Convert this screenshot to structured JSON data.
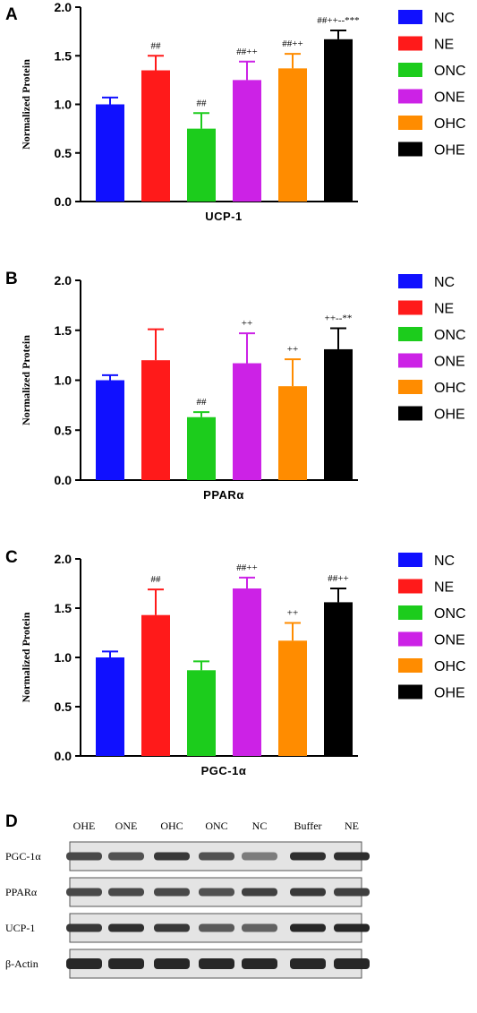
{
  "colors": {
    "NC": "#1010ff",
    "NE": "#ff1a1a",
    "ONC": "#1ccc1c",
    "ONE": "#cc22e6",
    "OHC": "#ff8c00",
    "OHE": "#000000"
  },
  "legend": [
    "NC",
    "NE",
    "ONC",
    "ONE",
    "OHC",
    "OHE"
  ],
  "chart_data": [
    {
      "type": "bar",
      "panel": "A",
      "title": "",
      "xlabel": "UCP-1",
      "ylabel": "Normalized Protein",
      "ylim": [
        0,
        2.0
      ],
      "yticks": [
        "0.0",
        "0.5",
        "1.0",
        "1.5",
        "2.0"
      ],
      "categories": [
        "NC",
        "NE",
        "ONC",
        "ONE",
        "OHC",
        "OHE"
      ],
      "values": [
        1.0,
        1.35,
        0.75,
        1.25,
        1.37,
        1.67
      ],
      "errors": [
        0.07,
        0.15,
        0.16,
        0.19,
        0.15,
        0.09
      ],
      "annotations": [
        "",
        "##",
        "##",
        "##++",
        "##++",
        "##++--***"
      ],
      "legend_position": "right"
    },
    {
      "type": "bar",
      "panel": "B",
      "title": "",
      "xlabel": "PPARα",
      "ylabel": "Normalized Protein",
      "ylim": [
        0,
        2.0
      ],
      "yticks": [
        "0.0",
        "0.5",
        "1.0",
        "1.5",
        "2.0"
      ],
      "categories": [
        "NC",
        "NE",
        "ONC",
        "ONE",
        "OHC",
        "OHE"
      ],
      "values": [
        1.0,
        1.2,
        0.63,
        1.17,
        0.94,
        1.31
      ],
      "errors": [
        0.05,
        0.31,
        0.05,
        0.3,
        0.27,
        0.21
      ],
      "annotations": [
        "",
        "",
        "##",
        "++",
        "++",
        "++--**"
      ],
      "legend_position": "right"
    },
    {
      "type": "bar",
      "panel": "C",
      "title": "",
      "xlabel": "PGC-1α",
      "ylabel": "Normalized Protein",
      "ylim": [
        0,
        2.0
      ],
      "yticks": [
        "0.0",
        "0.5",
        "1.0",
        "1.5",
        "2.0"
      ],
      "categories": [
        "NC",
        "NE",
        "ONC",
        "ONE",
        "OHC",
        "OHE"
      ],
      "values": [
        1.0,
        1.43,
        0.87,
        1.7,
        1.17,
        1.56
      ],
      "errors": [
        0.06,
        0.26,
        0.09,
        0.11,
        0.18,
        0.14
      ],
      "annotations": [
        "",
        "##",
        "",
        "##++",
        "++",
        "##++"
      ],
      "legend_position": "right"
    }
  ],
  "western_blot": {
    "panel": "D",
    "lanes": [
      "OHE",
      "ONE",
      "OHC",
      "ONC",
      "NC",
      "Buffer",
      "NE"
    ],
    "rows": [
      {
        "label": "PGC-1α",
        "intensity": [
          0.75,
          0.7,
          0.85,
          0.7,
          0.45,
          0.9,
          0.9
        ]
      },
      {
        "label": "PPARα",
        "intensity": [
          0.75,
          0.75,
          0.75,
          0.7,
          0.8,
          0.85,
          0.8
        ]
      },
      {
        "label": "UCP-1",
        "intensity": [
          0.85,
          0.9,
          0.85,
          0.65,
          0.6,
          0.95,
          0.95
        ]
      },
      {
        "label": "β-Actin",
        "intensity": [
          0.95,
          0.95,
          0.95,
          0.95,
          0.95,
          0.95,
          0.95
        ]
      }
    ]
  }
}
